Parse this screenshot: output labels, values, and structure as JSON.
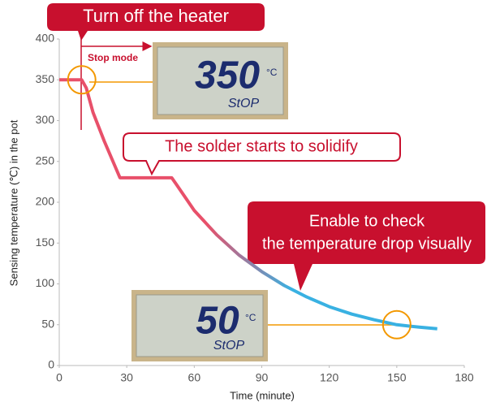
{
  "chart_data": {
    "type": "line",
    "y_label": "Sensing temperature (℃) in the pot",
    "x_label": "Time (minute)",
    "x": [
      0,
      10,
      12,
      15,
      20,
      27,
      40,
      50,
      52,
      60,
      70,
      80,
      90,
      100,
      110,
      120,
      130,
      140,
      150,
      160,
      168
    ],
    "series": [
      {
        "colors": [
          "#e8506a",
          "#39b1e2"
        ],
        "values": [
          350,
          350,
          340,
          310,
          275,
          230,
          230,
          230,
          222,
          190,
          160,
          135,
          115,
          98,
          84,
          72,
          63,
          56,
          50,
          47,
          45
        ]
      }
    ],
    "xlim": [
      0,
      180
    ],
    "xticks": [
      0,
      30,
      60,
      90,
      120,
      150,
      180
    ],
    "ylim": [
      0,
      400
    ],
    "yticks": [
      0,
      50,
      100,
      150,
      200,
      250,
      300,
      350,
      400
    ],
    "grid": false,
    "annotations": {
      "heater": "Turn off the heater",
      "stop_mode": "Stop mode",
      "solidify": "The solder starts to solidify",
      "check": [
        "Enable to check",
        "the temperature drop visually"
      ]
    },
    "displays": [
      {
        "reading": "350",
        "unit": "°C",
        "status": "StOP"
      },
      {
        "reading": "50",
        "unit": "°C",
        "status": "StOP"
      }
    ]
  }
}
